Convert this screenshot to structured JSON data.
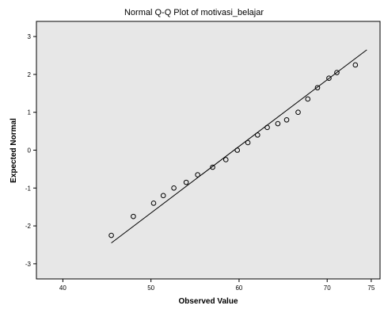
{
  "chart_data": {
    "type": "scatter",
    "title": "Normal Q-Q Plot of motivasi_belajar",
    "xlabel": "Observed Value",
    "ylabel": "Expected Normal",
    "xlim": [
      37,
      76
    ],
    "ylim": [
      -3.4,
      3.4
    ],
    "xticks": [
      40,
      50,
      60,
      70,
      75
    ],
    "xtick_labels": [
      "40",
      "50",
      "60",
      "70",
      "75"
    ],
    "yticks": [
      -3,
      -2,
      -1,
      0,
      1,
      2,
      3
    ],
    "ytick_labels": [
      "-3",
      "-2",
      "-1",
      "0",
      "1",
      "2",
      "3"
    ],
    "grid": false,
    "legend": "none",
    "reference_line": {
      "x": [
        45.5,
        74.5
      ],
      "y": [
        -2.45,
        2.65
      ]
    },
    "x": [
      45.5,
      48.0,
      50.3,
      51.4,
      52.6,
      54.0,
      55.3,
      57.0,
      58.5,
      59.8,
      61.0,
      62.1,
      63.2,
      64.4,
      65.4,
      66.7,
      67.8,
      68.9,
      70.2,
      71.1,
      73.2
    ],
    "y": [
      -2.25,
      -1.75,
      -1.4,
      -1.2,
      -1.0,
      -0.85,
      -0.65,
      -0.45,
      -0.25,
      0.0,
      0.2,
      0.4,
      0.6,
      0.7,
      0.8,
      1.0,
      1.35,
      1.65,
      1.9,
      2.05,
      2.25
    ],
    "colors": {
      "plot_background": "#e7e7e7",
      "frame": "#000000",
      "marker_edge": "#000000",
      "line": "#000000"
    }
  }
}
